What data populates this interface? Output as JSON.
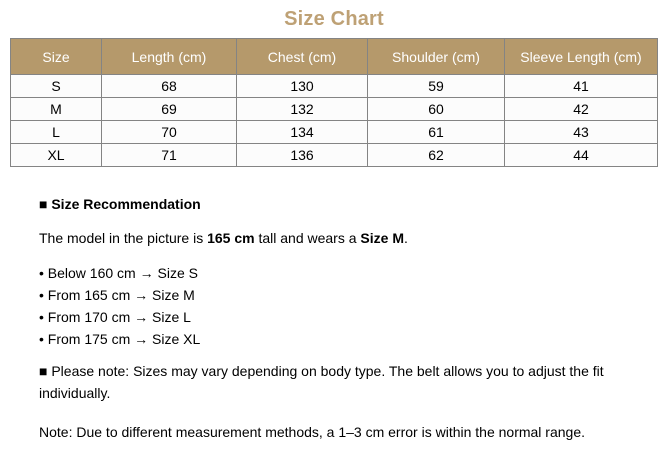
{
  "title": "Size Chart",
  "colors": {
    "title_text": "#BEA175",
    "header_background": "#B5996B",
    "header_text": "#FFFFFF",
    "table_border": "#848484",
    "body_text": "#000000"
  },
  "table": {
    "headers": [
      "Size",
      "Length (cm)",
      "Chest (cm)",
      "Shoulder (cm)",
      "Sleeve Length (cm)"
    ],
    "rows": [
      [
        "S",
        "68",
        "130",
        "59",
        "41"
      ],
      [
        "M",
        "69",
        "132",
        "60",
        "42"
      ],
      [
        "L",
        "70",
        "134",
        "61",
        "43"
      ],
      [
        "XL",
        "71",
        "136",
        "62",
        "44"
      ]
    ]
  },
  "recommendation": {
    "heading": "■ Size Recommendation",
    "model_line": {
      "part1": "The model in the picture is ",
      "bold1": "165 cm",
      "part2": " tall and wears a ",
      "bold2": "Size M",
      "part3": "."
    },
    "bullets": [
      "• Below 160 cm → Size S",
      "• From 165 cm → Size M",
      "• From 170 cm → Size L",
      "• From 175 cm → Size XL"
    ]
  },
  "notes": {
    "please_note": "■ Please note: Sizes may vary depending on body type. The belt allows you to adjust the fit individually.",
    "measurement_note": "Note: Due to different measurement methods, a 1–3 cm error is within the normal range."
  }
}
